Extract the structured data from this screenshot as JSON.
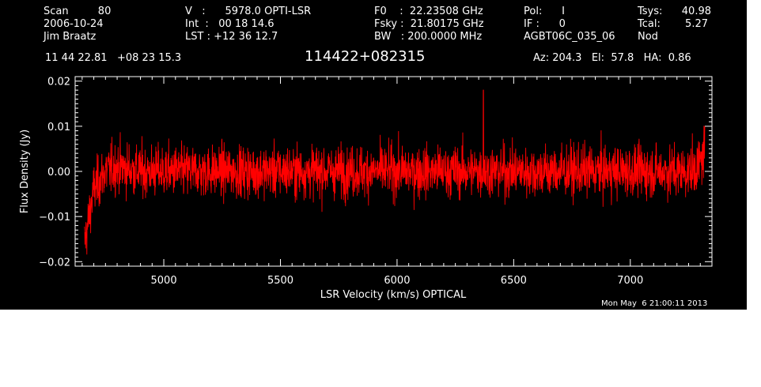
{
  "header": {
    "col1": [
      "Scan         80",
      "2006-10-24",
      "Jim Braatz"
    ],
    "col2": [
      "V   :      5978.0 OPTI-LSR",
      "Int  :   00 18 14.6",
      "LST : +12 36 12.7"
    ],
    "col3": [
      "F0    :  22.23508 GHz",
      "Fsky :  21.80175 GHz",
      "BW   : 200.0000 MHz"
    ],
    "col4": [
      "Pol:      I",
      "IF :      0",
      "AGBT06C_035_06"
    ],
    "col5": [
      "Tsys:",
      "Tcal:",
      "Nod"
    ],
    "col6": [
      "40.98",
      "5.27",
      ""
    ],
    "coords": "11 44 22.81   +08 23 15.3",
    "source": "114422+082315",
    "azelha": "Az: 204.3   El:  57.8   HA:  0.86",
    "timestamp": "Mon May  6 21:00:11 2013"
  },
  "colors": {
    "background": "#000000",
    "axes": "#ffffff",
    "trace": "#ff0000"
  },
  "chart_data": {
    "type": "line",
    "title": "114422+082315",
    "xlabel": "LSR Velocity (km/s) OPTICAL",
    "ylabel": "Flux Density (Jy)",
    "xlim": [
      4620,
      7350
    ],
    "ylim": [
      -0.021,
      0.021
    ],
    "xticks": [
      5000,
      5500,
      6000,
      6500,
      7000
    ],
    "xtick_labels": [
      "5000",
      "5500",
      "6000",
      "6500",
      "7000"
    ],
    "yticks": [
      -0.02,
      -0.01,
      0.0,
      0.01,
      0.02
    ],
    "ytick_labels": [
      "−0.02",
      "−0.01",
      "0.00",
      "0.01",
      "0.02"
    ],
    "grid": false,
    "series": [
      {
        "x": [
          4660,
          4680,
          4700,
          4750,
          4800,
          4900,
          5000,
          5100,
          5200,
          5300,
          5400,
          5500,
          5600,
          5700,
          5800,
          5900,
          6000,
          6100,
          6200,
          6300,
          6360,
          6400,
          6500,
          6600,
          6700,
          6800,
          6900,
          7000,
          7100,
          7200,
          7250,
          7290,
          7310,
          7320
        ],
        "y": [
          -0.016,
          -0.01,
          -0.004,
          0.0,
          0.001,
          0.0,
          0.0,
          0.0,
          0.0,
          0.0,
          0.0,
          0.0,
          0.0,
          0.0,
          0.0,
          0.0,
          0.0,
          0.0,
          0.0,
          0.0,
          0.0,
          0.0,
          0.0,
          0.0,
          0.0,
          0.0,
          0.0,
          0.0,
          0.0,
          0.0,
          0.0,
          0.001,
          0.003,
          0.006
        ],
        "noise_rms_jy": 0.004,
        "spike": {
          "x": 6370,
          "y": 0.018
        }
      }
    ]
  }
}
